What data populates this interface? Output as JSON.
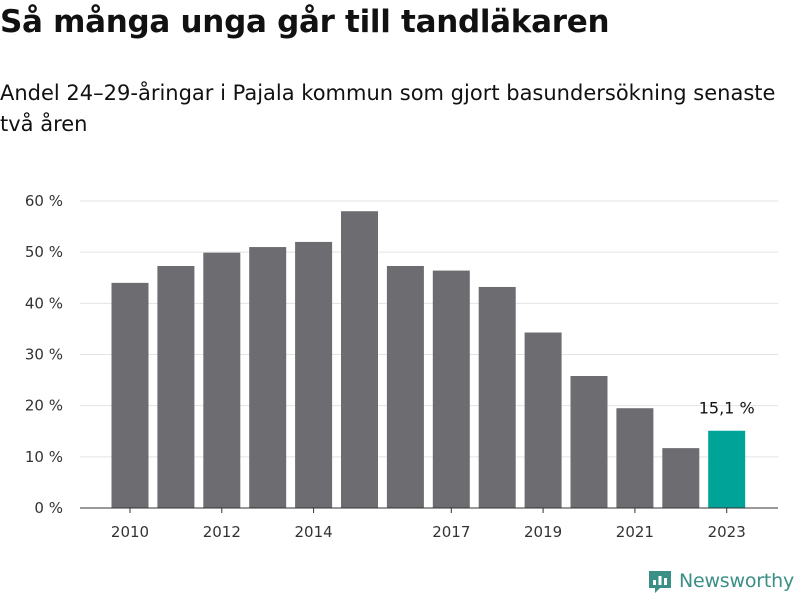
{
  "chart_data": {
    "type": "bar",
    "title": "Så många unga går till tandläkaren",
    "subtitle": "Andel 24–29-åringar i Pajala kommun som gjort basundersökning senaste två åren",
    "x": [
      2010,
      2011,
      2012,
      2013,
      2014,
      2015,
      2016,
      2017,
      2018,
      2019,
      2020,
      2021,
      2022,
      2023
    ],
    "x_tick_labels": [
      "2010",
      "2012",
      "2014",
      "2017",
      "2019",
      "2021",
      "2023"
    ],
    "values": [
      44,
      47.3,
      49.9,
      51,
      52,
      58,
      47.3,
      46.4,
      43.2,
      34.3,
      25.8,
      19.5,
      11.7,
      15.1
    ],
    "y_tick_labels": [
      "0 %",
      "10 %",
      "20 %",
      "30 %",
      "40 %",
      "50 %",
      "60 %"
    ],
    "ylim": [
      0,
      60
    ],
    "grid": true,
    "highlight_index": 13,
    "data_labels": [
      {
        "index": 13,
        "text": "15,1 %"
      }
    ],
    "bar_color": "#6d6c71",
    "highlight_color": "#00a397"
  },
  "brand": {
    "name": "Newsworthy",
    "color": "#3a8f86"
  }
}
